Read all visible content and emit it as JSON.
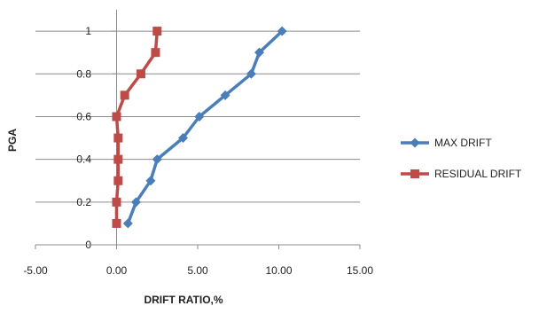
{
  "chart_data": {
    "type": "line",
    "title": "",
    "xlabel": "DRIFT RATIO,%",
    "ylabel": "PGA",
    "xlim": [
      -5,
      15
    ],
    "ylim": [
      0,
      1.1
    ],
    "x_ticks": [
      "-5.00",
      "0.00",
      "5.00",
      "10.00",
      "15.00"
    ],
    "y_ticks": [
      "0",
      "0.2",
      "0.4",
      "0.6",
      "0.8",
      "1"
    ],
    "grid": "horizontal",
    "legend_position": "right",
    "series": [
      {
        "name": "MAX DRIFT",
        "color": "#4a7ebb",
        "marker": "diamond",
        "points": [
          {
            "x": 0.7,
            "y": 0.1
          },
          {
            "x": 1.2,
            "y": 0.2
          },
          {
            "x": 2.1,
            "y": 0.3
          },
          {
            "x": 2.5,
            "y": 0.4
          },
          {
            "x": 4.1,
            "y": 0.5
          },
          {
            "x": 5.1,
            "y": 0.6
          },
          {
            "x": 6.7,
            "y": 0.7
          },
          {
            "x": 8.3,
            "y": 0.8
          },
          {
            "x": 8.8,
            "y": 0.9
          },
          {
            "x": 10.2,
            "y": 1.0
          }
        ]
      },
      {
        "name": "RESIDUAL DRIFT",
        "color": "#be4b48",
        "marker": "square",
        "points": [
          {
            "x": 0.0,
            "y": 0.1
          },
          {
            "x": 0.0,
            "y": 0.2
          },
          {
            "x": 0.1,
            "y": 0.3
          },
          {
            "x": 0.1,
            "y": 0.4
          },
          {
            "x": 0.1,
            "y": 0.5
          },
          {
            "x": 0.0,
            "y": 0.6
          },
          {
            "x": 0.5,
            "y": 0.7
          },
          {
            "x": 1.5,
            "y": 0.8
          },
          {
            "x": 2.4,
            "y": 0.9
          },
          {
            "x": 2.5,
            "y": 1.0
          }
        ]
      }
    ]
  }
}
